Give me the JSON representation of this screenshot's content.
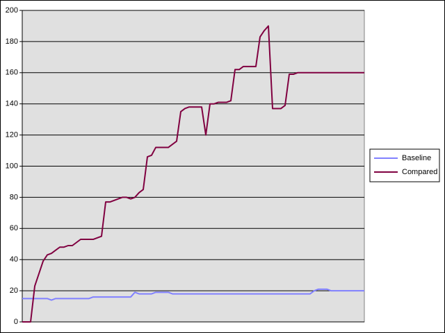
{
  "chart_data": {
    "type": "line",
    "categories": [
      null,
      null,
      null,
      null,
      null,
      null,
      null,
      null,
      null,
      null,
      null,
      null,
      null,
      null,
      null,
      null,
      null,
      null,
      null,
      null,
      null,
      null,
      null,
      null,
      null,
      null,
      null,
      null,
      null,
      null,
      null,
      null,
      null,
      null,
      null,
      null,
      null,
      null,
      null,
      null,
      null,
      null,
      null,
      null,
      null,
      null,
      null,
      null,
      null,
      null,
      null,
      null,
      null,
      null,
      null,
      null,
      null,
      null,
      null,
      null,
      null,
      null,
      null,
      null,
      null,
      null,
      null,
      null,
      null,
      null,
      null,
      null,
      null,
      null,
      null,
      null,
      null,
      null,
      null,
      null,
      null,
      null,
      null
    ],
    "series": [
      {
        "name": "Baseline",
        "color": "#8080ff",
        "values": [
          15,
          15,
          15,
          15,
          15,
          15,
          15,
          14,
          15,
          15,
          15,
          15,
          15,
          15,
          15,
          15,
          15,
          16,
          16,
          16,
          16,
          16,
          16,
          16,
          16,
          16,
          16,
          19,
          18,
          18,
          18,
          18,
          19,
          19,
          19,
          19,
          18,
          18,
          18,
          18,
          18,
          18,
          18,
          18,
          18,
          18,
          18,
          18,
          18,
          18,
          18,
          18,
          18,
          18,
          18,
          18,
          18,
          18,
          18,
          18,
          18,
          18,
          18,
          18,
          18,
          18,
          18,
          18,
          18,
          18,
          20,
          21,
          21,
          21,
          20,
          20,
          20,
          20,
          20,
          20,
          20,
          20,
          20
        ]
      },
      {
        "name": "Compared",
        "color": "#800040",
        "values": [
          0,
          0,
          0,
          23,
          31,
          39,
          43,
          44,
          46,
          48,
          48,
          49,
          49,
          51,
          53,
          53,
          53,
          53,
          54,
          55,
          77,
          77,
          78,
          79,
          80,
          80,
          79,
          80,
          83,
          85,
          106,
          107,
          112,
          112,
          112,
          112,
          114,
          116,
          135,
          137,
          138,
          138,
          138,
          138,
          120,
          140,
          140,
          141,
          141,
          141,
          142,
          162,
          162,
          164,
          164,
          164,
          164,
          183,
          187,
          190,
          137,
          137,
          137,
          139,
          159,
          159,
          160,
          160,
          160,
          160,
          160,
          160,
          160,
          160,
          160,
          160,
          160,
          160,
          160,
          160,
          160,
          160,
          160
        ]
      }
    ],
    "ylim": [
      0,
      200
    ],
    "yticks": [
      0,
      20,
      40,
      60,
      80,
      100,
      120,
      140,
      160,
      180,
      200
    ],
    "grid": true,
    "legend": "right"
  }
}
